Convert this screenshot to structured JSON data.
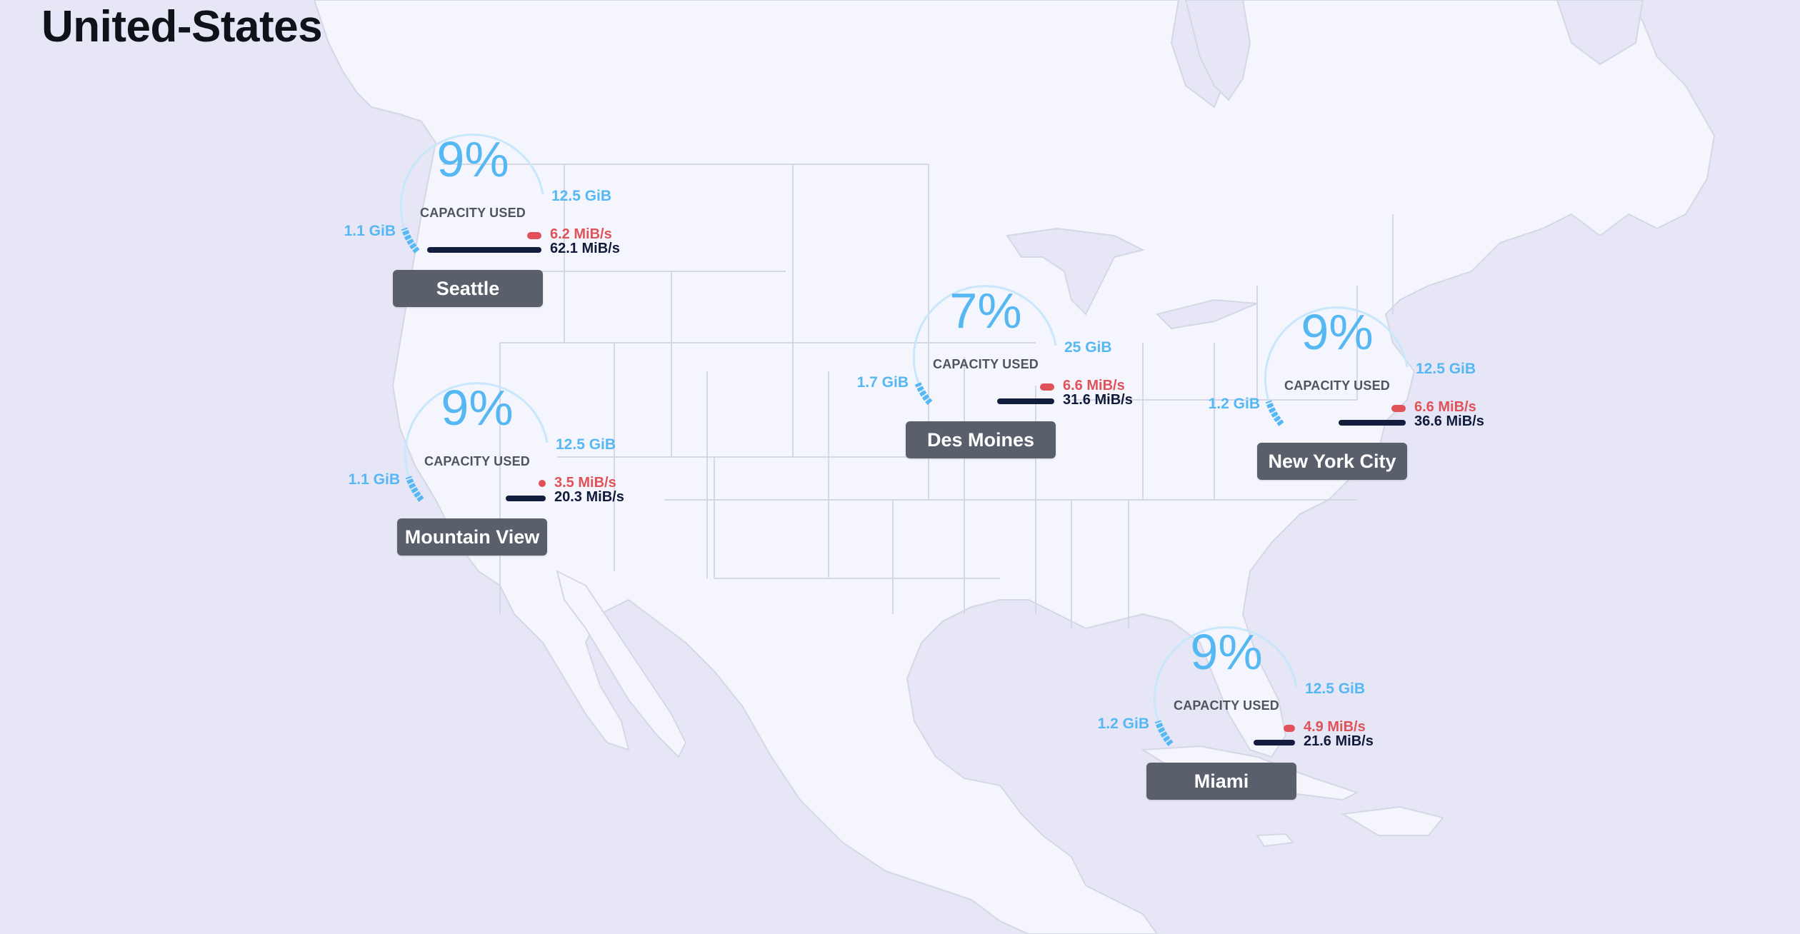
{
  "page": {
    "title": "United-States"
  },
  "colors": {
    "ocean": "#e6e6f6",
    "land": "#f4f5fd",
    "border": "#d6d7e4",
    "gauge_fill": "#56b8f3",
    "gauge_track": "#c9e7fb",
    "upload": "#e05257",
    "download": "#121c3c",
    "city_badge": "#5a5f6c"
  },
  "nodes": [
    {
      "city": "Seattle",
      "percent": "9%",
      "percent_value": 0.09,
      "capacity_label": "CAPACITY USED",
      "min": "1.1 GiB",
      "max": "12.5 GiB",
      "upload": "6.2 MiB/s",
      "download": "62.1 MiB/s",
      "upload_fraction": 0.1,
      "download_fraction": 1.0
    },
    {
      "city": "Mountain View",
      "percent": "9%",
      "percent_value": 0.09,
      "capacity_label": "CAPACITY USED",
      "min": "1.1 GiB",
      "max": "12.5 GiB",
      "upload": "3.5 MiB/s",
      "download": "20.3 MiB/s",
      "upload_fraction": 0.06,
      "download_fraction": 0.33
    },
    {
      "city": "Des Moines",
      "percent": "7%",
      "percent_value": 0.07,
      "capacity_label": "CAPACITY USED",
      "min": "1.7 GiB",
      "max": "25 GiB",
      "upload": "6.6 MiB/s",
      "download": "31.6 MiB/s",
      "upload_fraction": 0.11,
      "download_fraction": 0.51
    },
    {
      "city": "New York City",
      "percent": "9%",
      "percent_value": 0.09,
      "capacity_label": "CAPACITY USED",
      "min": "1.2 GiB",
      "max": "12.5 GiB",
      "upload": "6.6 MiB/s",
      "download": "36.6 MiB/s",
      "upload_fraction": 0.11,
      "download_fraction": 0.59
    },
    {
      "city": "Miami",
      "percent": "9%",
      "percent_value": 0.09,
      "capacity_label": "CAPACITY USED",
      "min": "1.2 GiB",
      "max": "12.5 GiB",
      "upload": "4.9 MiB/s",
      "download": "21.6 MiB/s",
      "upload_fraction": 0.08,
      "download_fraction": 0.35
    }
  ]
}
